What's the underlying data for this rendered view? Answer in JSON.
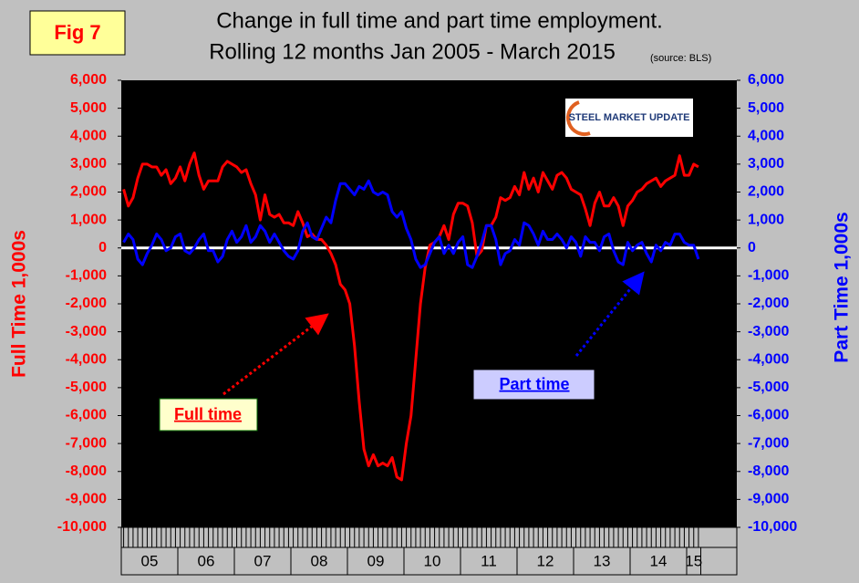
{
  "chart_data": {
    "type": "line",
    "title": "Change in full time and part time employment.",
    "subtitle": "Rolling 12 months Jan 2005 - March 2015",
    "source": "(source: BLS)",
    "figure_label": "Fig 7",
    "logo": "STEEL MARKET UPDATE",
    "y_label": "Full Time 1,000s",
    "y2_label": "Part Time 1,000s",
    "categories": [
      "05",
      null,
      null,
      null,
      null,
      null,
      null,
      null,
      null,
      null,
      null,
      null,
      "06",
      null,
      null,
      null,
      null,
      null,
      null,
      null,
      null,
      null,
      null,
      null,
      "07",
      null,
      null,
      null,
      null,
      null,
      null,
      null,
      null,
      null,
      null,
      null,
      "08",
      null,
      null,
      null,
      null,
      null,
      null,
      null,
      null,
      null,
      null,
      null,
      "09",
      null,
      null,
      null,
      null,
      null,
      null,
      null,
      null,
      null,
      null,
      null,
      "10",
      null,
      null,
      null,
      null,
      null,
      null,
      null,
      null,
      null,
      null,
      null,
      "11",
      null,
      null,
      null,
      null,
      null,
      null,
      null,
      null,
      null,
      null,
      null,
      "12",
      null,
      null,
      null,
      null,
      null,
      null,
      null,
      null,
      null,
      null,
      null,
      "13",
      null,
      null,
      null,
      null,
      null,
      null,
      null,
      null,
      null,
      null,
      null,
      "14",
      null,
      null,
      null,
      null,
      null,
      null,
      null,
      null,
      null,
      null,
      null,
      "15",
      null,
      null
    ],
    "series": [
      {
        "name": "Full time",
        "color": "#ff0000",
        "values": [
          2100,
          1500,
          1800,
          2500,
          3000,
          3000,
          2900,
          2900,
          2600,
          2800,
          2300,
          2500,
          2900,
          2400,
          3000,
          3400,
          2600,
          2100,
          2400,
          2400,
          2400,
          2900,
          3100,
          3000,
          2900,
          2700,
          2800,
          2300,
          1900,
          1000,
          1900,
          1200,
          1100,
          1200,
          900,
          900,
          800,
          1300,
          900,
          400,
          500,
          300,
          300,
          100,
          -200,
          -600,
          -1300,
          -1500,
          -2000,
          -3500,
          -5500,
          -7200,
          -7800,
          -7400,
          -7800,
          -7700,
          -7800,
          -7500,
          -8200,
          -8300,
          -7000,
          -6000,
          -4000,
          -2000,
          -700,
          100,
          200,
          400,
          800,
          300,
          1200,
          1600,
          1600,
          1500,
          900,
          -300,
          -100,
          800,
          800,
          1100,
          1800,
          1700,
          1800,
          2200,
          1900,
          2700,
          2100,
          2500,
          2000,
          2700,
          2400,
          2100,
          2600,
          2700,
          2500,
          2100,
          2000,
          1900,
          1400,
          800,
          1600,
          2000,
          1500,
          1500,
          1800,
          1500,
          800,
          1500,
          1700,
          2000,
          2100,
          2300,
          2400,
          2500,
          2200,
          2400,
          2500,
          2600,
          3300,
          2600,
          2600,
          3000,
          2900
        ]
      },
      {
        "name": "Part time",
        "color": "#0000ff",
        "axis": "y2",
        "values": [
          200,
          500,
          300,
          -400,
          -600,
          -200,
          100,
          500,
          300,
          -100,
          0,
          400,
          500,
          -100,
          -200,
          0,
          300,
          500,
          -100,
          -100,
          -500,
          -300,
          300,
          600,
          200,
          400,
          800,
          200,
          400,
          800,
          600,
          200,
          500,
          200,
          -100,
          -300,
          -400,
          -100,
          600,
          900,
          400,
          300,
          700,
          1100,
          900,
          1700,
          2300,
          2300,
          2100,
          1900,
          2200,
          2100,
          2400,
          2000,
          1900,
          2000,
          1900,
          1300,
          1100,
          1300,
          700,
          300,
          -400,
          -700,
          -600,
          -200,
          200,
          400,
          -200,
          100,
          -200,
          200,
          400,
          -600,
          -700,
          -300,
          200,
          800,
          800,
          300,
          -600,
          -200,
          -100,
          300,
          100,
          900,
          800,
          500,
          100,
          600,
          300,
          300,
          500,
          300,
          0,
          400,
          200,
          -300,
          400,
          200,
          200,
          -100,
          400,
          500,
          -100,
          -500,
          -600,
          200,
          -100,
          100,
          200,
          -200,
          -500,
          100,
          -100,
          200,
          100,
          500,
          500,
          200,
          100,
          100,
          -400
        ]
      }
    ],
    "ylim": [
      -10000,
      6000
    ],
    "yticks": [
      {
        "value": -10000,
        "label": "-10,000"
      },
      {
        "value": -9000,
        "label": "-9,000"
      },
      {
        "value": -8000,
        "label": "-8,000"
      },
      {
        "value": -7000,
        "label": "-7,000"
      },
      {
        "value": -6000,
        "label": "-6,000"
      },
      {
        "value": -5000,
        "label": "-5,000"
      },
      {
        "value": -4000,
        "label": "-4,000"
      },
      {
        "value": -3000,
        "label": "-3,000"
      },
      {
        "value": -2000,
        "label": "-2,000"
      },
      {
        "value": -1000,
        "label": "-1,000"
      },
      0,
      {
        "value": 1000,
        "label": "1,000"
      },
      {
        "value": 2000,
        "label": "2,000"
      },
      {
        "value": 3000,
        "label": "3,000"
      },
      {
        "value": 4000,
        "label": "4,000"
      },
      {
        "value": 5000,
        "label": "5,000"
      },
      {
        "value": 6000,
        "label": "6,000"
      }
    ],
    "y2lim": [
      -10000,
      6000
    ],
    "y2ticks": [
      {
        "value": -10000,
        "label": "-10,000"
      },
      {
        "value": -9000,
        "label": "-9,000"
      },
      {
        "value": -8000,
        "label": "-8,000"
      },
      {
        "value": -7000,
        "label": "-7,000"
      },
      {
        "value": -6000,
        "label": "-6,000"
      },
      {
        "value": -5000,
        "label": "-5,000"
      },
      {
        "value": -4000,
        "label": "-4,000"
      },
      {
        "value": -3000,
        "label": "-3,000"
      },
      {
        "value": -2000,
        "label": "-2,000"
      },
      {
        "value": -1000,
        "label": "-1,000"
      },
      0,
      {
        "value": 1000,
        "label": "1,000"
      },
      {
        "value": 2000,
        "label": "2,000"
      },
      {
        "value": 3000,
        "label": "3,000"
      },
      {
        "value": 4000,
        "label": "4,000"
      },
      {
        "value": 5000,
        "label": "5,000"
      },
      {
        "value": 6000,
        "label": "6,000"
      }
    ]
  }
}
